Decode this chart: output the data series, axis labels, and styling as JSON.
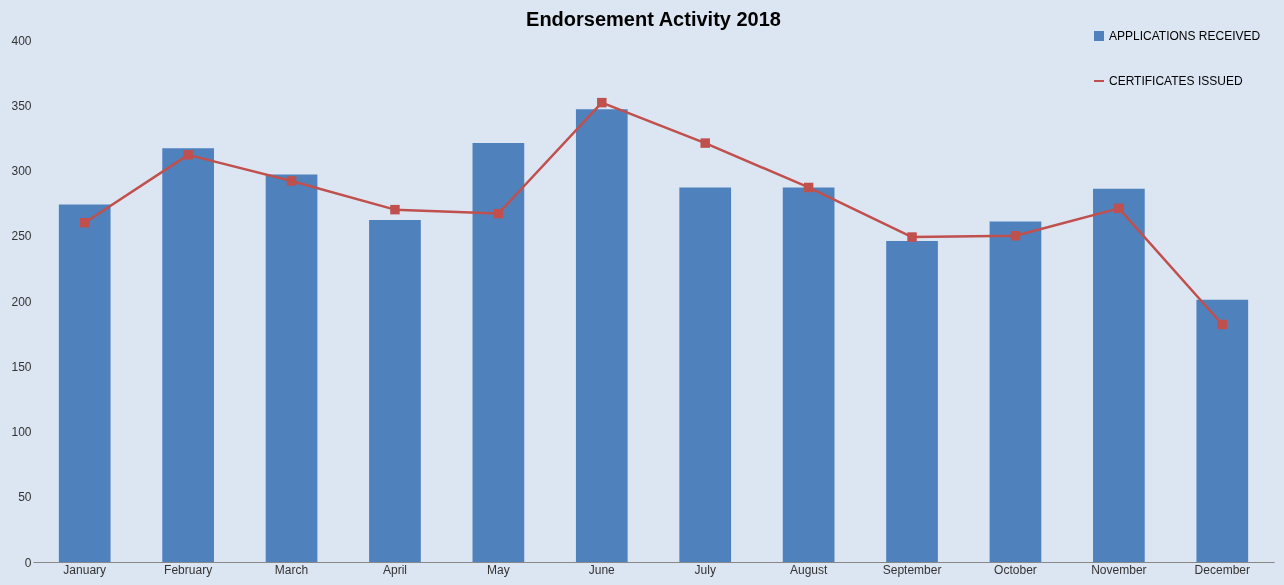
{
  "chart_data": {
    "type": "bar",
    "title": "Endorsement Activity 2018",
    "categories": [
      "January",
      "February",
      "March",
      "April",
      "May",
      "June",
      "July",
      "August",
      "September",
      "October",
      "November",
      "December"
    ],
    "series": [
      {
        "name": "APPLICATIONS RECEIVED",
        "color": "#4f81bd",
        "values": [
          274,
          317,
          297,
          262,
          321,
          347,
          287,
          287,
          246,
          261,
          286,
          201
        ]
      },
      {
        "name": "CERTIFICATES ISSUED",
        "type": "line",
        "color": "#c0504d",
        "marker": "square",
        "values": [
          260,
          312,
          292,
          270,
          267,
          352,
          321,
          287,
          249,
          250,
          271,
          182
        ]
      }
    ],
    "ylim": [
      0,
      400
    ],
    "yticks": [
      0,
      50,
      100,
      150,
      200,
      250,
      300,
      350,
      400
    ],
    "grid": false,
    "legend": "top right"
  }
}
